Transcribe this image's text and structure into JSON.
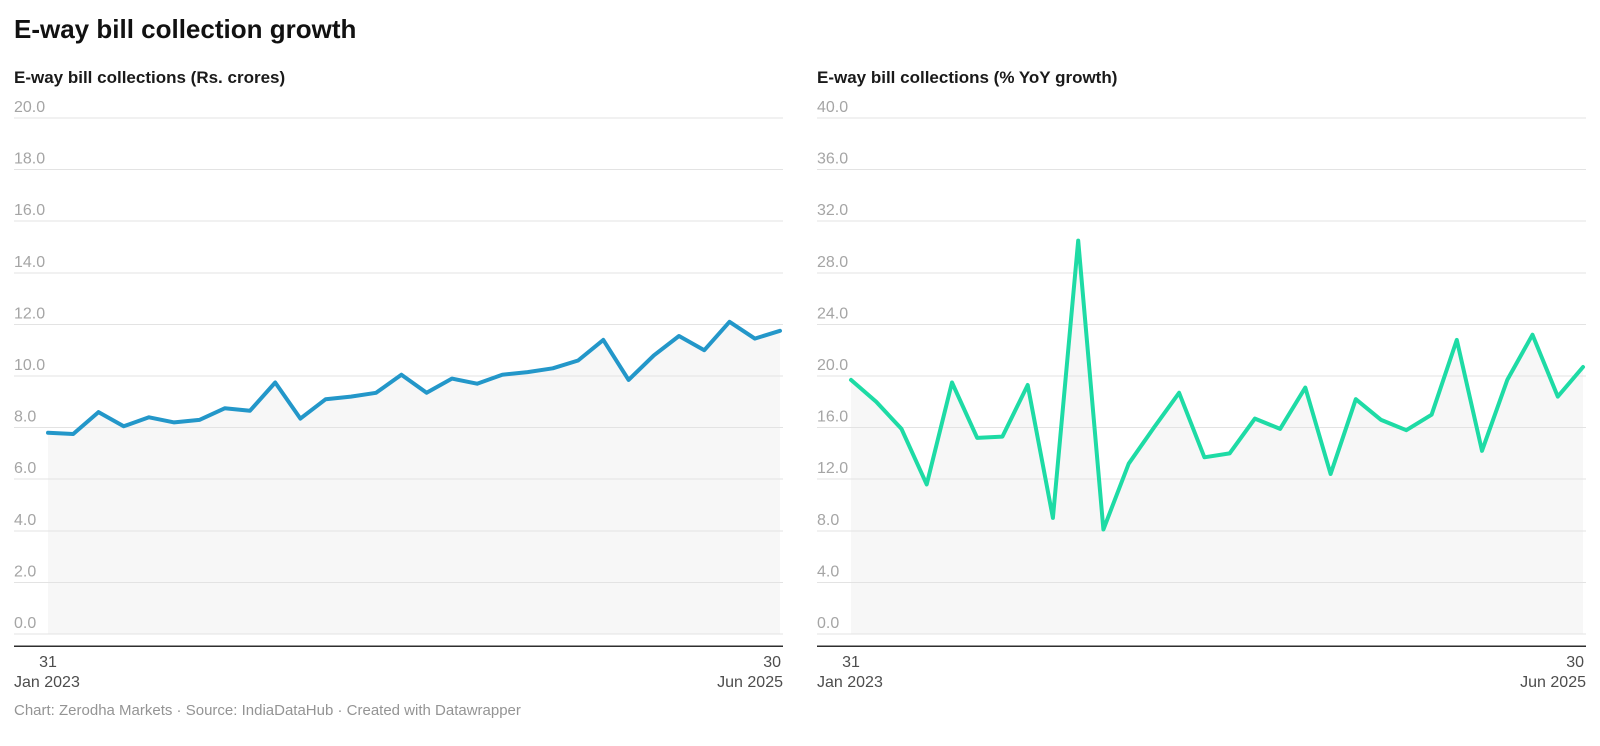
{
  "header": {
    "title": "E-way bill collection growth"
  },
  "footer": {
    "text": "Chart: Zerodha Markets · Source: IndiaDataHub · Created with Datawrapper"
  },
  "chart_data": [
    {
      "type": "line",
      "title": "E-way bill collections (Rs. crores)",
      "x": [
        "Jan 2023",
        "Feb 2023",
        "Mar 2023",
        "Apr 2023",
        "May 2023",
        "Jun 2023",
        "Jul 2023",
        "Aug 2023",
        "Sep 2023",
        "Oct 2023",
        "Nov 2023",
        "Dec 2023",
        "Jan 2024",
        "Feb 2024",
        "Mar 2024",
        "Apr 2024",
        "May 2024",
        "Jun 2024",
        "Jul 2024",
        "Aug 2024",
        "Sep 2024",
        "Oct 2024",
        "Nov 2024",
        "Dec 2024",
        "Jan 2025",
        "Feb 2025",
        "Mar 2025",
        "Apr 2025",
        "May 2025",
        "Jun 2025"
      ],
      "values": [
        7.8,
        7.75,
        8.6,
        8.05,
        8.4,
        8.2,
        8.3,
        8.75,
        8.65,
        9.75,
        8.35,
        9.1,
        9.2,
        9.35,
        10.05,
        9.35,
        9.9,
        9.7,
        10.05,
        10.15,
        10.3,
        10.6,
        11.4,
        9.85,
        10.8,
        11.55,
        11.0,
        12.1,
        11.45,
        11.75
      ],
      "ylim": [
        0,
        20
      ],
      "ytick_step": 2,
      "ytick_labels": [
        "0.0",
        "2.0",
        "4.0",
        "6.0",
        "8.0",
        "10.0",
        "12.0",
        "14.0",
        "16.0",
        "18.0",
        "20.0"
      ],
      "x_axis": {
        "start_day": "31",
        "start_month_year": "Jan 2023",
        "end_day": "30",
        "end_month_year": "Jun 2025"
      },
      "grid": true,
      "legend": "none",
      "line_color": "#2397c9",
      "area_fill": "#f7f7f7",
      "grid_color": "#e3e3e3",
      "tick_label_color": "#a5a5a5",
      "date_label_color": "#4d4d4d",
      "axis_color": "#2e2e2e"
    },
    {
      "type": "line",
      "title": "E-way bill collections (% YoY growth)",
      "x": [
        "Jan 2023",
        "Feb 2023",
        "Mar 2023",
        "Apr 2023",
        "May 2023",
        "Jun 2023",
        "Jul 2023",
        "Aug 2023",
        "Sep 2023",
        "Oct 2023",
        "Nov 2023",
        "Dec 2023",
        "Jan 2024",
        "Feb 2024",
        "Mar 2024",
        "Apr 2024",
        "May 2024",
        "Jun 2024",
        "Jul 2024",
        "Aug 2024",
        "Sep 2024",
        "Oct 2024",
        "Nov 2024",
        "Dec 2024",
        "Jan 2025",
        "Feb 2025",
        "Mar 2025",
        "Apr 2025",
        "May 2025",
        "Jun 2025"
      ],
      "values": [
        19.7,
        18.0,
        15.9,
        11.6,
        19.5,
        15.2,
        15.3,
        19.3,
        9.0,
        30.5,
        8.1,
        13.2,
        16.0,
        18.7,
        13.7,
        14.0,
        16.7,
        15.9,
        19.1,
        12.4,
        18.2,
        16.6,
        15.8,
        17.0,
        22.8,
        14.2,
        19.7,
        23.2,
        18.4,
        20.7
      ],
      "ylim": [
        0,
        40
      ],
      "ytick_step": 4,
      "ytick_labels": [
        "0.0",
        "4.0",
        "8.0",
        "12.0",
        "16.0",
        "20.0",
        "24.0",
        "28.0",
        "32.0",
        "36.0",
        "40.0"
      ],
      "x_axis": {
        "start_day": "31",
        "start_month_year": "Jan 2023",
        "end_day": "30",
        "end_month_year": "Jun 2025"
      },
      "grid": true,
      "legend": "none",
      "line_color": "#1edba5",
      "area_fill": "#f7f7f7",
      "grid_color": "#e3e3e3",
      "tick_label_color": "#a5a5a5",
      "date_label_color": "#4d4d4d",
      "axis_color": "#2e2e2e"
    }
  ]
}
